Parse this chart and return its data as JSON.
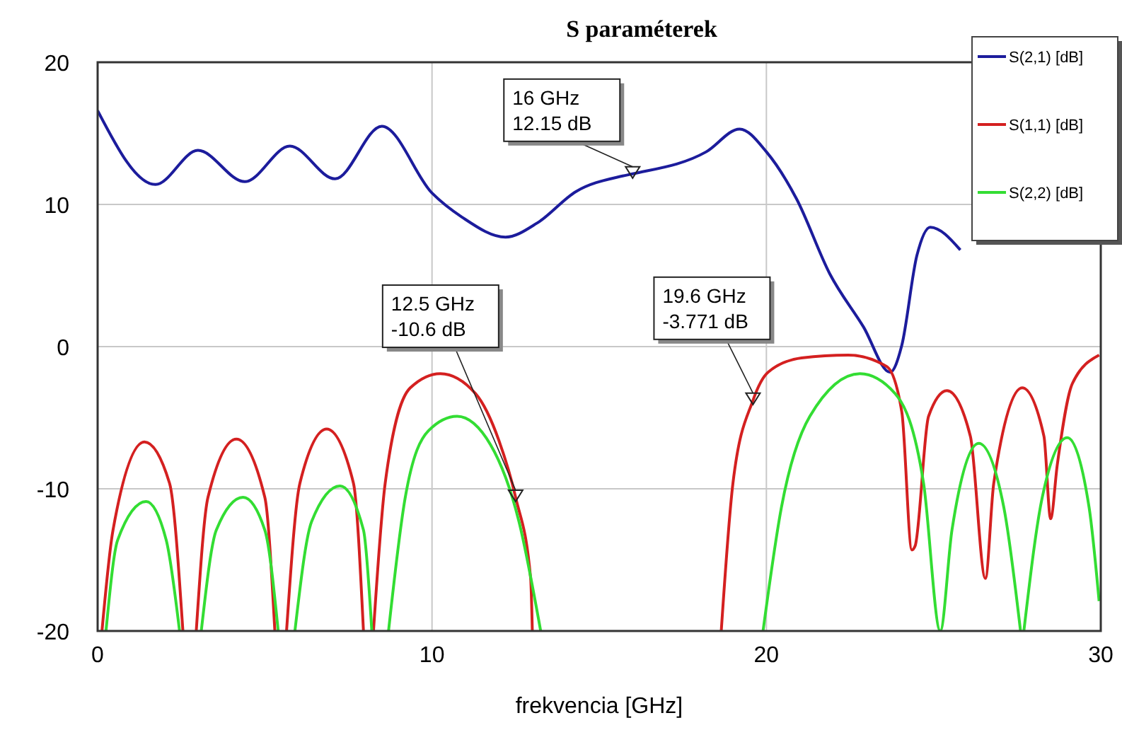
{
  "chart_data": {
    "type": "line",
    "title": "S paraméterek",
    "xlabel": "frekvencia [GHz]",
    "xlim": [
      0,
      30
    ],
    "xticks": [
      0,
      10,
      20,
      30
    ],
    "ylim": [
      -20,
      20
    ],
    "yticks": [
      -20,
      -10,
      0,
      10,
      20
    ],
    "grid": true,
    "legend": "top right",
    "marker": "none",
    "line_style": "solid",
    "series": [
      {
        "name": "S(2,1) [dB]",
        "color": "#1c1c9c",
        "x": [
          0,
          1.73,
          3.0,
          4.4,
          5.75,
          7.1,
          8.5,
          10.0,
          10.9,
          12.2,
          13.15,
          14.3,
          15.7,
          16,
          18.2,
          19.2,
          20.0,
          20.9,
          21.9,
          22.9,
          23.7,
          24.05,
          24.5,
          24.9,
          25.8
        ],
        "values": [
          16.6,
          11.4,
          13.8,
          11.6,
          14.1,
          11.8,
          15.5,
          10.8,
          9.1,
          7.7,
          8.7,
          10.9,
          12.0,
          12.15,
          13.7,
          15.3,
          13.7,
          10.4,
          5.1,
          1.4,
          -1.8,
          0.1,
          6.4,
          8.4,
          6.8
        ]
      },
      {
        "name": "S(1,1) [dB]",
        "color": "#d42020",
        "x": [
          0.13,
          0.46,
          1.4,
          2.15,
          2.55,
          2.75,
          2.95,
          3.3,
          4.15,
          5.0,
          5.3,
          5.5,
          5.65,
          6.05,
          6.85,
          7.65,
          7.95,
          8.1,
          8.25,
          8.6,
          9.35,
          10.25,
          11.3,
          12.0,
          12.5,
          12.95,
          13.0,
          15,
          18.65,
          19.0,
          19.6,
          20.05,
          21.05,
          22.45,
          23.6,
          24.05,
          24.35,
          24.45,
          24.85,
          25.4,
          26.1,
          26.55,
          26.8,
          27.65,
          28.3,
          28.5,
          28.7,
          29.15,
          29.95
        ],
        "values": [
          -20,
          -12.9,
          -6.7,
          -9.6,
          -20,
          null,
          -20,
          -10.6,
          -6.5,
          -10.6,
          -20,
          null,
          -20,
          -9.6,
          -5.8,
          -9.6,
          -20,
          null,
          -20,
          -9.6,
          -2.9,
          -1.9,
          -3.3,
          -6.6,
          -10.6,
          -16.3,
          -20,
          null,
          -20,
          -9.6,
          -3.771,
          -1.8,
          -0.8,
          -0.6,
          -1.4,
          -4.6,
          -14.3,
          -14.0,
          -4.9,
          -3.1,
          -6.3,
          -16.3,
          -9.6,
          -2.9,
          -6.3,
          -12.1,
          -8.3,
          -2.6,
          -0.6
        ]
      },
      {
        "name": "S(2,2) [dB]",
        "color": "#33dd33",
        "x": [
          0.25,
          0.6,
          1.45,
          2.05,
          2.45,
          2.8,
          3.1,
          3.55,
          4.35,
          5.0,
          5.4,
          5.65,
          5.9,
          6.4,
          7.25,
          7.95,
          8.2,
          8.45,
          8.7,
          9.2,
          9.9,
          10.75,
          11.75,
          12.6,
          13.25,
          16,
          19.9,
          20.45,
          21.3,
          22.8,
          23.85,
          24.7,
          25.2,
          25.55,
          26.35,
          27.1,
          27.6,
          27.65,
          27.7,
          28.25,
          29.0,
          29.65,
          29.95
        ],
        "values": [
          -20,
          -13.6,
          -10.9,
          -13.6,
          -20,
          null,
          -20,
          -12.9,
          -10.6,
          -12.9,
          -20,
          null,
          -20,
          -12.3,
          -9.8,
          -12.9,
          -20,
          null,
          -20,
          -10.6,
          -5.9,
          -4.9,
          -6.9,
          -12.3,
          -20,
          null,
          -20,
          -11.3,
          -4.9,
          -1.9,
          -3.3,
          -9.6,
          -20,
          -12.9,
          -6.8,
          -11.3,
          -20,
          null,
          -20,
          -10.6,
          -6.4,
          -11.3,
          -17.9
        ]
      }
    ],
    "annotations": [
      {
        "text": "16 GHz\n12.15 dB",
        "x": 16,
        "y": 12.15
      },
      {
        "text": "12.5 GHz\n-10.6 dB",
        "x": 12.5,
        "y": -10.6
      },
      {
        "text": "19.6 GHz\n-3.771 dB",
        "x": 19.6,
        "y": -3.771
      }
    ]
  }
}
